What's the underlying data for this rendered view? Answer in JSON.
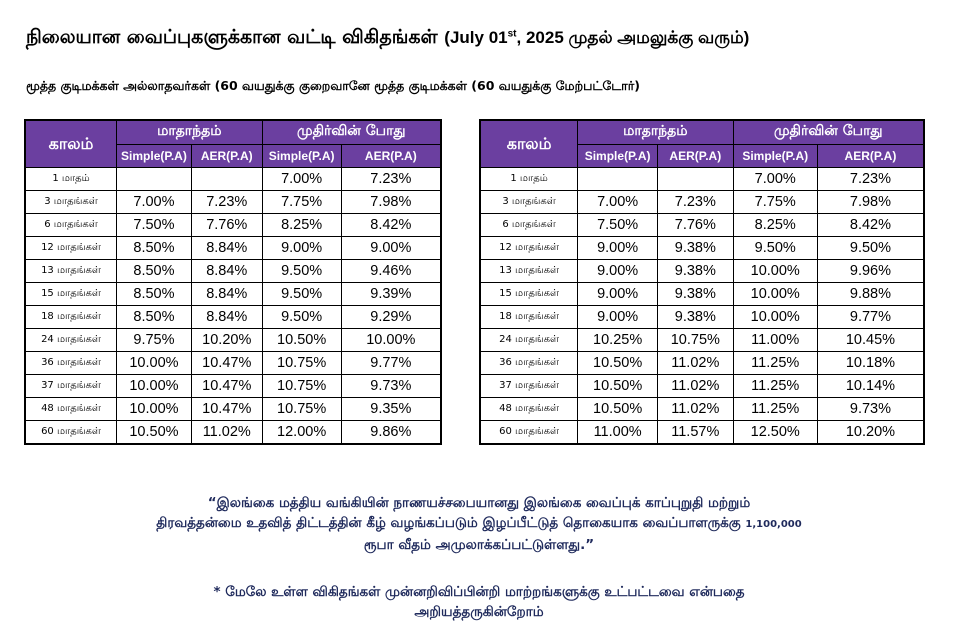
{
  "header": {
    "title_main": "நிலையான வைப்புகளுக்கான வட்டி விகிதங்கள்",
    "title_open": "(July 01",
    "title_sup": "st",
    "title_close": ", 2025 முதல் அமலுக்கு வரும்)",
    "subtitle": "மூத்த குடிமக்கள் அல்லாதவர்கள் (60 வயதுக்கு குறைவானே மூத்த குடிமக்கள் (60 வயதுக்கு மேற்பட்டோர்)"
  },
  "columns": {
    "period": "காலம்",
    "monthly": "மாதாந்தம்",
    "maturity": "முதிர்வின் போது",
    "simple": "Simple(P.A)",
    "aer": "AER(P.A)"
  },
  "tables": [
    {
      "rows": [
        {
          "period": "1 மாதம்",
          "m_simple": "",
          "m_aer": "",
          "mat_simple": "7.00%",
          "mat_aer": "7.23%"
        },
        {
          "period": "3 மாதங்கள்",
          "m_simple": "7.00%",
          "m_aer": "7.23%",
          "mat_simple": "7.75%",
          "mat_aer": "7.98%"
        },
        {
          "period": "6 மாதங்கள்",
          "m_simple": "7.50%",
          "m_aer": "7.76%",
          "mat_simple": "8.25%",
          "mat_aer": "8.42%"
        },
        {
          "period": "12 மாதங்கள்",
          "m_simple": "8.50%",
          "m_aer": "8.84%",
          "mat_simple": "9.00%",
          "mat_aer": "9.00%"
        },
        {
          "period": "13 மாதங்கள்",
          "m_simple": "8.50%",
          "m_aer": "8.84%",
          "mat_simple": "9.50%",
          "mat_aer": "9.46%"
        },
        {
          "period": "15 மாதங்கள்",
          "m_simple": "8.50%",
          "m_aer": "8.84%",
          "mat_simple": "9.50%",
          "mat_aer": "9.39%"
        },
        {
          "period": "18 மாதங்கள்",
          "m_simple": "8.50%",
          "m_aer": "8.84%",
          "mat_simple": "9.50%",
          "mat_aer": "9.29%"
        },
        {
          "period": "24 மாதங்கள்",
          "m_simple": "9.75%",
          "m_aer": "10.20%",
          "mat_simple": "10.50%",
          "mat_aer": "10.00%"
        },
        {
          "period": "36 மாதங்கள்",
          "m_simple": "10.00%",
          "m_aer": "10.47%",
          "mat_simple": "10.75%",
          "mat_aer": "9.77%"
        },
        {
          "period": "37 மாதங்கள்",
          "m_simple": "10.00%",
          "m_aer": "10.47%",
          "mat_simple": "10.75%",
          "mat_aer": "9.73%"
        },
        {
          "period": "48 மாதங்கள்",
          "m_simple": "10.00%",
          "m_aer": "10.47%",
          "mat_simple": "10.75%",
          "mat_aer": "9.35%"
        },
        {
          "period": "60 மாதங்கள்",
          "m_simple": "10.50%",
          "m_aer": "11.02%",
          "mat_simple": "12.00%",
          "mat_aer": "9.86%"
        }
      ]
    },
    {
      "rows": [
        {
          "period": "1 மாதம்",
          "m_simple": "",
          "m_aer": "",
          "mat_simple": "7.00%",
          "mat_aer": "7.23%"
        },
        {
          "period": "3 மாதங்கள்",
          "m_simple": "7.00%",
          "m_aer": "7.23%",
          "mat_simple": "7.75%",
          "mat_aer": "7.98%"
        },
        {
          "period": "6 மாதங்கள்",
          "m_simple": "7.50%",
          "m_aer": "7.76%",
          "mat_simple": "8.25%",
          "mat_aer": "8.42%"
        },
        {
          "period": "12 மாதங்கள்",
          "m_simple": "9.00%",
          "m_aer": "9.38%",
          "mat_simple": "9.50%",
          "mat_aer": "9.50%"
        },
        {
          "period": "13 மாதங்கள்",
          "m_simple": "9.00%",
          "m_aer": "9.38%",
          "mat_simple": "10.00%",
          "mat_aer": "9.96%"
        },
        {
          "period": "15 மாதங்கள்",
          "m_simple": "9.00%",
          "m_aer": "9.38%",
          "mat_simple": "10.00%",
          "mat_aer": "9.88%"
        },
        {
          "period": "18 மாதங்கள்",
          "m_simple": "9.00%",
          "m_aer": "9.38%",
          "mat_simple": "10.00%",
          "mat_aer": "9.77%"
        },
        {
          "period": "24 மாதங்கள்",
          "m_simple": "10.25%",
          "m_aer": "10.75%",
          "mat_simple": "11.00%",
          "mat_aer": "10.45%"
        },
        {
          "period": "36 மாதங்கள்",
          "m_simple": "10.50%",
          "m_aer": "11.02%",
          "mat_simple": "11.25%",
          "mat_aer": "10.18%"
        },
        {
          "period": "37 மாதங்கள்",
          "m_simple": "10.50%",
          "m_aer": "11.02%",
          "mat_simple": "11.25%",
          "mat_aer": "10.14%"
        },
        {
          "period": "48 மாதங்கள்",
          "m_simple": "10.50%",
          "m_aer": "11.02%",
          "mat_simple": "11.25%",
          "mat_aer": "9.73%"
        },
        {
          "period": "60 மாதங்கள்",
          "m_simple": "11.00%",
          "m_aer": "11.57%",
          "mat_simple": "12.50%",
          "mat_aer": "10.20%"
        }
      ]
    }
  ],
  "notes": {
    "deposit_line1": "“இலங்கை மத்திய வங்கியின் நாணயச்சபையானது இலங்கை வைப்புக் காப்புறுதி மற்றும்",
    "deposit_line2a": "திரவத்தன்மை உதவித் திட்டத்தின் கீழ் வழங்கப்படும் இழப்பீட்டுத் தொகையாக வைப்பாளருக்கு",
    "deposit_amount": "1,100,000",
    "deposit_line3": "ரூபா வீதம் அமுலாக்கப்பட்டுள்ளது.”",
    "disclaimer_line1": "* மேலே உள்ள விகிதங்கள் முன்னறிவிப்பின்றி மாற்றங்களுக்கு உட்பட்டவை என்பதை",
    "disclaimer_line2": "அறியத்தருகின்றோம்"
  }
}
